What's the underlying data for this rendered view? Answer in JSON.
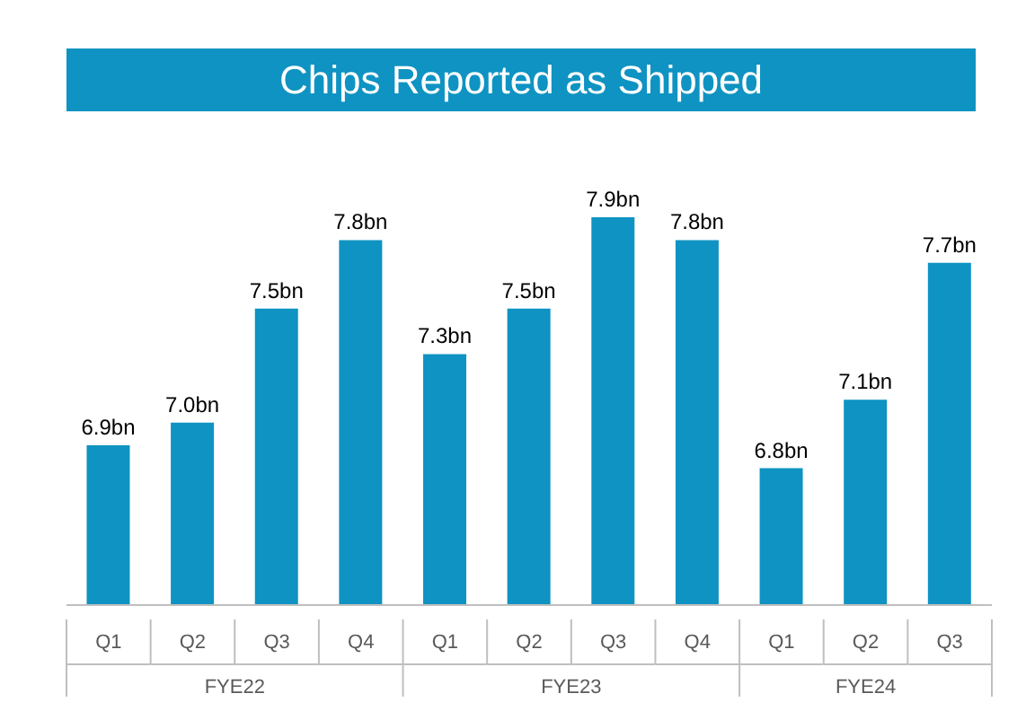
{
  "chart_data": {
    "type": "bar",
    "title": "Chips Reported as Shipped",
    "categories": [
      "Q1",
      "Q2",
      "Q3",
      "Q4",
      "Q1",
      "Q2",
      "Q3",
      "Q4",
      "Q1",
      "Q2",
      "Q3"
    ],
    "values": [
      6.9,
      7.0,
      7.5,
      7.8,
      7.3,
      7.5,
      7.9,
      7.8,
      6.8,
      7.1,
      7.7
    ],
    "value_labels": [
      "6.9bn",
      "7.0bn",
      "7.5bn",
      "7.8bn",
      "7.3bn",
      "7.5bn",
      "7.9bn",
      "7.8bn",
      "6.8bn",
      "7.1bn",
      "7.7bn"
    ],
    "color": "#0f93c2",
    "ylim": [
      6.2,
      7.9
    ],
    "grid": false,
    "annotations": [
      "FYE22",
      "FYE23",
      "FYE24"
    ]
  }
}
